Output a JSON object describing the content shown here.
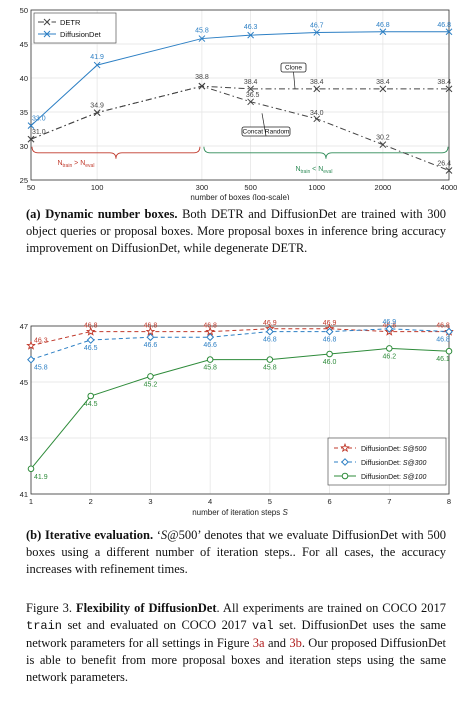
{
  "chart_data": [
    {
      "type": "line",
      "xlabel": "number of boxes (log-scale)",
      "x_scale": "log",
      "x": [
        50,
        100,
        300,
        500,
        1000,
        2000,
        4000
      ],
      "x_ticks": [
        "50",
        "100",
        "300",
        "500",
        "1000",
        "2000",
        "4000"
      ],
      "ylim": [
        25,
        50
      ],
      "y_ticks": [
        "25",
        "30",
        "35",
        "40",
        "45",
        "50"
      ],
      "grid": true,
      "legend_position": "top-left",
      "series": [
        {
          "name": "DETR",
          "color": "#444444",
          "dash": "6,3,1.5,3",
          "marker": "x",
          "values": [
            31.0,
            34.9,
            38.8,
            38.4,
            38.4,
            38.4,
            38.4
          ],
          "value_labels": [
            "31.0",
            "34.9",
            "38.8",
            "38.4",
            "38.4",
            "38.4",
            "38.4"
          ]
        },
        {
          "name": "DETR",
          "color": "#444444",
          "dash": "6,3,1.5,3",
          "marker": "x",
          "values": [
            31.0,
            34.9,
            38.8,
            36.5,
            34.0,
            30.2,
            26.4
          ],
          "value_labels": [
            "",
            "",
            "",
            "36.5",
            "34.0",
            "30.2",
            "26.4"
          ]
        },
        {
          "name": "DiffusionDet",
          "color": "#2c7fc4",
          "dash": "",
          "marker": "x",
          "values": [
            33.0,
            41.9,
            45.8,
            46.3,
            46.7,
            46.8,
            46.8
          ],
          "value_labels": [
            "33.0",
            "41.9",
            "45.8",
            "46.3",
            "46.7",
            "46.8",
            "46.8"
          ]
        }
      ],
      "annotations": [
        "Clone",
        "Concat Random"
      ],
      "brace_labels": [
        {
          "text": "N",
          "sub1": "train",
          "rel": " > N",
          "sub2": "eval",
          "color": "#c0392b"
        },
        {
          "text": "N",
          "sub1": "train",
          "rel": " < N",
          "sub2": "eval",
          "color": "#2e8b57"
        }
      ]
    },
    {
      "type": "line",
      "xlabel": "number of iteration steps",
      "xlabel_var": "S",
      "x": [
        1,
        2,
        3,
        4,
        5,
        6,
        7,
        8
      ],
      "x_ticks": [
        "1",
        "2",
        "3",
        "4",
        "5",
        "6",
        "7",
        "8"
      ],
      "ylim": [
        41,
        47
      ],
      "y_ticks": [
        "41",
        "43",
        "45",
        "47"
      ],
      "grid": true,
      "legend_position": "bottom-right",
      "series": [
        {
          "name": "DiffusionDet: ",
          "name_var": "S@500",
          "color": "#c0392b",
          "dash": "4,3",
          "marker": "star",
          "values": [
            46.3,
            46.8,
            46.8,
            46.8,
            46.9,
            46.9,
            46.8,
            46.8
          ],
          "value_labels": [
            "46.3",
            "46.8",
            "46.8",
            "46.8",
            "46.9",
            "46.9",
            "46.8",
            "46.8"
          ]
        },
        {
          "name": "DiffusionDet: ",
          "name_var": "S@300",
          "color": "#2c7fc4",
          "dash": "4,3",
          "marker": "diamond",
          "values": [
            45.8,
            46.5,
            46.6,
            46.6,
            46.8,
            46.8,
            46.9,
            46.8
          ],
          "value_labels": [
            "45.8",
            "46.5",
            "46.6",
            "46.6",
            "46.8",
            "46.8",
            "46.9",
            "46.8"
          ]
        },
        {
          "name": "DiffusionDet: ",
          "name_var": "S@100",
          "color": "#2e8b3a",
          "dash": "",
          "marker": "circle",
          "values": [
            41.9,
            44.5,
            45.2,
            45.8,
            45.8,
            46.0,
            46.2,
            46.1
          ],
          "value_labels": [
            "41.9",
            "44.5",
            "45.2",
            "45.8",
            "45.8",
            "46.0",
            "46.2",
            "46.1"
          ]
        }
      ]
    }
  ],
  "captions": {
    "a_label": "(a)",
    "a_title": "Dynamic number boxes.",
    "a_body": " Both DETR and DiffusionDet are trained with 300 object queries or proposal boxes. More proposal boxes in inference bring accuracy improvement on DiffusionDet, while degenerate DETR.",
    "b_label": "(b)",
    "b_title": "Iterative evaluation.",
    "b_q1": " ‘",
    "b_var": "S",
    "b_q2": "@500’",
    "b_body": " denotes that we evaluate DiffusionDet with 500 boxes using a different number of iteration steps.. For all cases, the accuracy increases with refinement times.",
    "fig_label": "Figure 3.",
    "fig_title": " Flexibility of DiffusionDet",
    "fig_t1": ". All experiments are trained on COCO 2017 ",
    "fig_train": "train",
    "fig_t2": " set and evaluated on COCO 2017 ",
    "fig_val": "val",
    "fig_t3": " set. DiffusionDet uses the same network parameters for all settings in Figure ",
    "fig_ref_a": "3a",
    "fig_t4": " and ",
    "fig_ref_b": "3b",
    "fig_t5": ". Our proposed DiffusionDet is able to benefit from more proposal boxes and iteration steps using the same network parameters."
  }
}
